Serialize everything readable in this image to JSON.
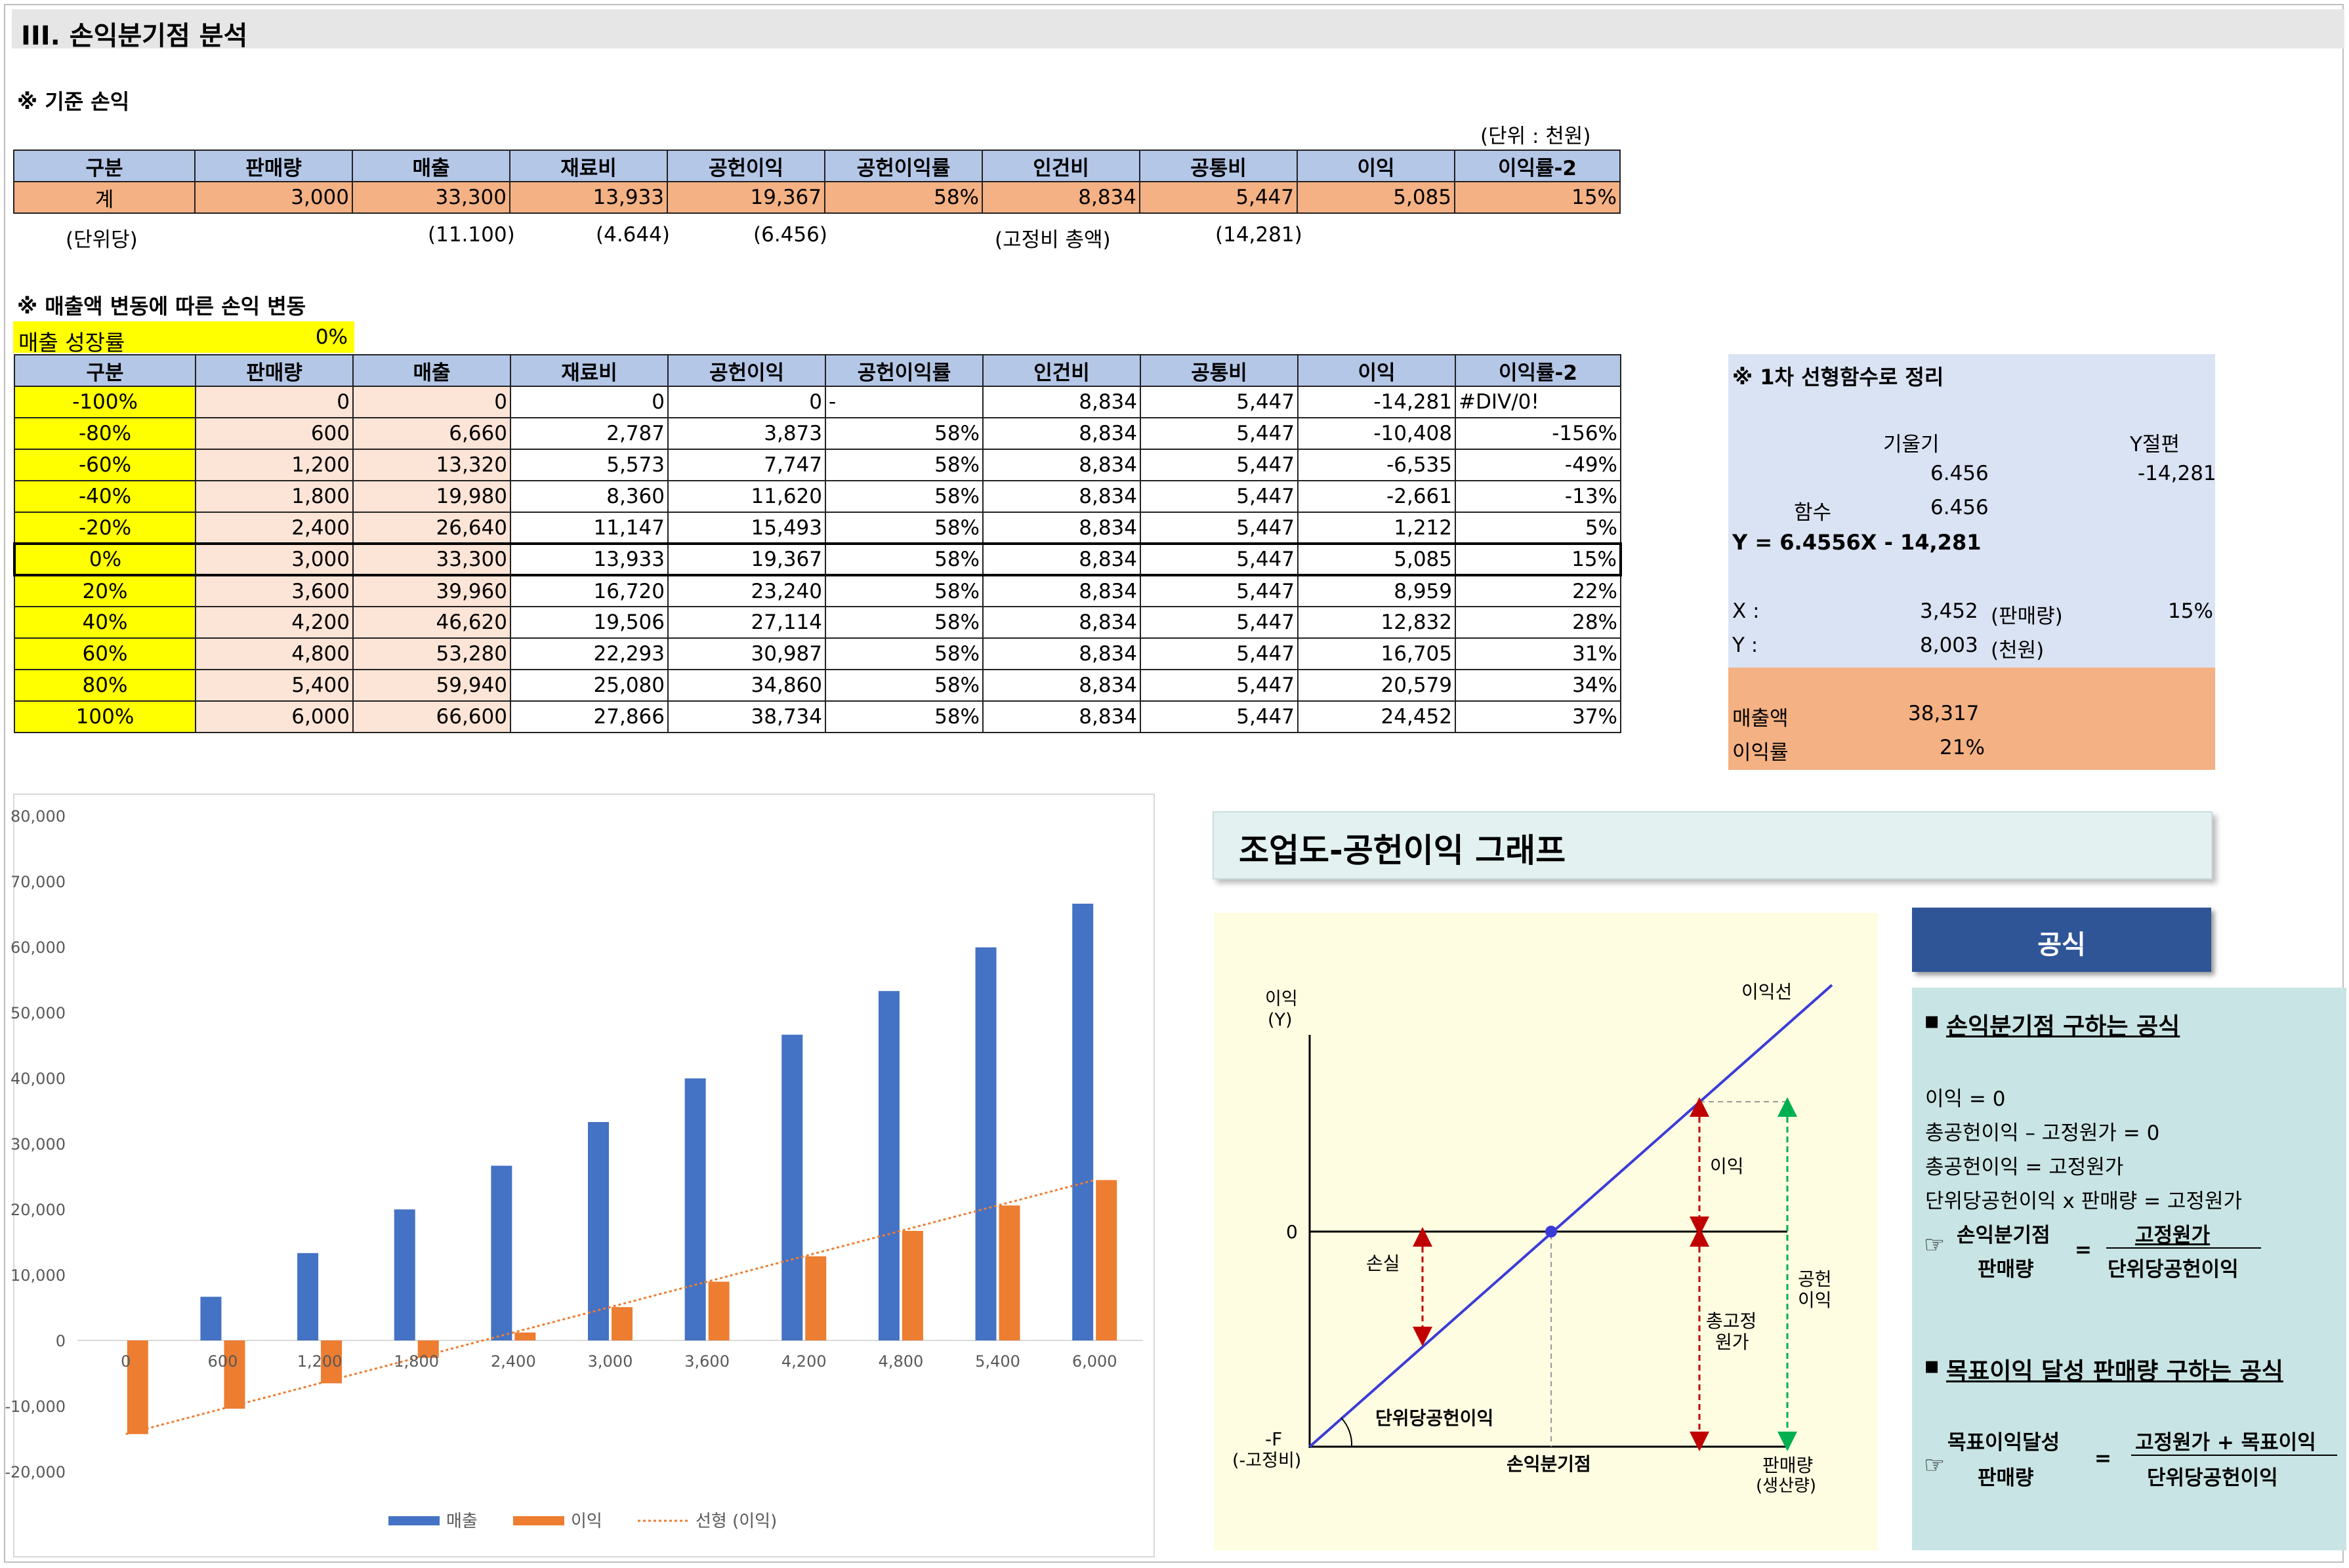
{
  "page_title": "III. 손익분기점 분석",
  "base": {
    "note": "※ 기준 손익",
    "unit": "(단위 : 천원)",
    "headers": [
      "구분",
      "판매량",
      "매출",
      "재료비",
      "공헌이익",
      "공헌이익률",
      "인건비",
      "공통비",
      "이익",
      "이익률-2"
    ],
    "total_row": [
      "계",
      "3,000",
      "33,300",
      "13,933",
      "19,367",
      "58%",
      "8,834",
      "5,447",
      "5,085",
      "15%"
    ],
    "per_unit_row": [
      "(단위당)",
      "",
      "(11.100)",
      "(4.644)",
      "(6.456)",
      "",
      "(고정비 총액)",
      "(14,281)",
      "",
      ""
    ]
  },
  "sens": {
    "note": "※ 매출액 변동에 따른 손익 변동",
    "growth_label": "매출 성장률",
    "growth_value": "0%",
    "headers": [
      "구분",
      "판매량",
      "매출",
      "재료비",
      "공헌이익",
      "공헌이익률",
      "인건비",
      "공통비",
      "이익",
      "이익률-2"
    ],
    "rows": [
      [
        "-100%",
        "0",
        "0",
        "0",
        "0",
        "-",
        "8,834",
        "5,447",
        "-14,281",
        "#DIV/0!"
      ],
      [
        "-80%",
        "600",
        "6,660",
        "2,787",
        "3,873",
        "58%",
        "8,834",
        "5,447",
        "-10,408",
        "-156%"
      ],
      [
        "-60%",
        "1,200",
        "13,320",
        "5,573",
        "7,747",
        "58%",
        "8,834",
        "5,447",
        "-6,535",
        "-49%"
      ],
      [
        "-40%",
        "1,800",
        "19,980",
        "8,360",
        "11,620",
        "58%",
        "8,834",
        "5,447",
        "-2,661",
        "-13%"
      ],
      [
        "-20%",
        "2,400",
        "26,640",
        "11,147",
        "15,493",
        "58%",
        "8,834",
        "5,447",
        "1,212",
        "5%"
      ],
      [
        "0%",
        "3,000",
        "33,300",
        "13,933",
        "19,367",
        "58%",
        "8,834",
        "5,447",
        "5,085",
        "15%"
      ],
      [
        "20%",
        "3,600",
        "39,960",
        "16,720",
        "23,240",
        "58%",
        "8,834",
        "5,447",
        "8,959",
        "22%"
      ],
      [
        "40%",
        "4,200",
        "46,620",
        "19,506",
        "27,114",
        "58%",
        "8,834",
        "5,447",
        "12,832",
        "28%"
      ],
      [
        "60%",
        "4,800",
        "53,280",
        "22,293",
        "30,987",
        "58%",
        "8,834",
        "5,447",
        "16,705",
        "31%"
      ],
      [
        "80%",
        "5,400",
        "59,940",
        "25,080",
        "34,860",
        "58%",
        "8,834",
        "5,447",
        "20,579",
        "34%"
      ],
      [
        "100%",
        "6,000",
        "66,600",
        "27,866",
        "38,734",
        "58%",
        "8,834",
        "5,447",
        "24,452",
        "37%"
      ]
    ]
  },
  "linear": {
    "title": "※ 1차 선형함수로 정리",
    "slope_label": "기울기",
    "intercept_label": "Y절편",
    "slope_value": "6.456",
    "intercept_value": "-14,281",
    "func_label": "함수",
    "func_value": "6.456",
    "equation": "Y = 6.4556X - 14,281",
    "x_label": "X :",
    "x_value": "3,452",
    "x_unit": "(판매량)",
    "x_pct": "15%",
    "y_label": "Y :",
    "y_value": "8,003",
    "y_unit": "(천원)",
    "sales_label": "매출액",
    "sales_value": "38,317",
    "margin_label": "이익률",
    "margin_value": "21%"
  },
  "chart_data": {
    "type": "bar",
    "categories": [
      "0",
      "600",
      "1,200",
      "1,800",
      "2,400",
      "3,000",
      "3,600",
      "4,200",
      "4,800",
      "5,400",
      "6,000"
    ],
    "series": [
      {
        "name": "매출",
        "color": "#4472c4",
        "values": [
          0,
          6660,
          13320,
          19980,
          26640,
          33300,
          39960,
          46620,
          53280,
          59940,
          66600
        ]
      },
      {
        "name": "이익",
        "color": "#ed7d31",
        "values": [
          -14281,
          -10408,
          -6535,
          -2661,
          1212,
          5085,
          8959,
          12832,
          16705,
          20579,
          24452
        ]
      }
    ],
    "trendline": {
      "name": "선형 (이익)",
      "color": "#ed7d31",
      "from": -14281,
      "to": 24452
    },
    "yticks": [
      "80,000",
      "70,000",
      "60,000",
      "50,000",
      "40,000",
      "30,000",
      "20,000",
      "10,000",
      "0",
      "-10,000",
      "-20,000"
    ],
    "ylim": [
      -20000,
      80000
    ],
    "grid": false,
    "legend": "bottom"
  },
  "graph": {
    "title": "조업도-공헌이익 그래프",
    "y_axis_label_1": "이익",
    "y_axis_label_2": "(Y)",
    "zero": "0",
    "neg_f": "-F",
    "neg_f_sub": "(-고정비)",
    "profit_line": "이익선",
    "profit": "이익",
    "loss": "손실",
    "fixed_cost_1": "총고정",
    "fixed_cost_2": "원가",
    "contrib_1": "공헌",
    "contrib_2": "이익",
    "unit_contrib": "단위당공헌이익",
    "bep": "손익분기점",
    "x_label_1": "판매량",
    "x_label_2": "(생산량)"
  },
  "formula": {
    "title": "공식",
    "h1": "손익분기점 구하는 공식",
    "lines": [
      "이익 = 0",
      "총공헌이익 – 고정원가 = 0",
      "총공헌이익 = 고정원가",
      "단위당공헌이익 x 판매량 = 고정원가"
    ],
    "bep_top": "손익분기점",
    "bep_bottom": "판매량",
    "eq": "=",
    "num1": "고정원가",
    "den1": "단위당공헌이익",
    "h2": "목표이익 달성 판매량 구하는 공식",
    "t_top": "목표이익달성",
    "t_bottom": "판매량",
    "num2": "고정원가 + 목표이익",
    "den2": "단위당공헌이익",
    "bullet": "▪",
    "hand": "☞"
  }
}
